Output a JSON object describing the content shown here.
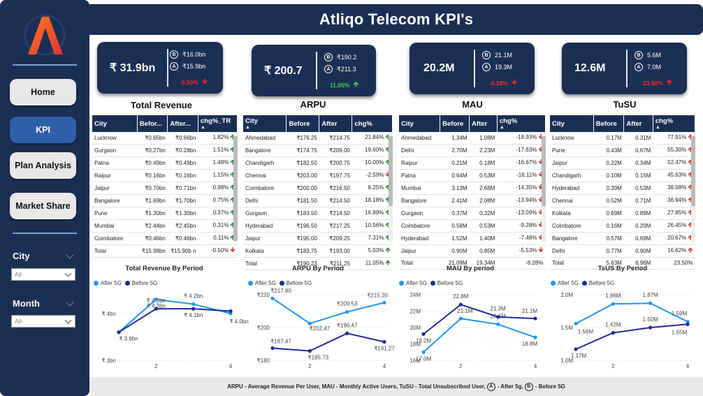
{
  "header": {
    "title": "Atliqo Telecom KPI's"
  },
  "sidebar": {
    "nav": [
      {
        "label": "Home",
        "active": false
      },
      {
        "label": "KPI",
        "active": true
      },
      {
        "label": "Plan Analysis",
        "active": false
      },
      {
        "label": "Market Share",
        "active": false
      }
    ],
    "filters": {
      "city": {
        "label": "City",
        "value": "All"
      },
      "month": {
        "label": "Month",
        "value": "All"
      }
    }
  },
  "kpis": [
    {
      "title": "Total Revenue",
      "main": "₹ 31.9bn",
      "before": "₹16.0bn",
      "after": "₹15.9bn",
      "change": "-0.50%",
      "direction": "down"
    },
    {
      "title": "ARPU",
      "main": "₹ 200.7",
      "before": "₹190.2",
      "after": "₹211.3",
      "change": "11.05%",
      "direction": "up"
    },
    {
      "title": "MAU",
      "main": "20.2M",
      "before": "21.1M",
      "after": "19.3M",
      "change": "-8.28%",
      "direction": "down"
    },
    {
      "title": "TuSU",
      "main": "12.6M",
      "before": "5.6M",
      "after": "7.0M",
      "change": "23.50%",
      "direction": "up"
    }
  ],
  "kpi_letters": {
    "before": "B",
    "after": "A"
  },
  "tables": [
    {
      "headers": [
        "City",
        "Befor...",
        "After...",
        "chg%_TR"
      ],
      "rows": [
        [
          "Lucknow",
          "₹0.65bn",
          "₹0.66bn",
          "1.82%",
          "up"
        ],
        [
          "Gurgaon",
          "₹0.27bn",
          "₹0.28bn",
          "1.51%",
          "up"
        ],
        [
          "Patna",
          "₹0.49bn",
          "₹0.49bn",
          "1.48%",
          "up"
        ],
        [
          "Raipur",
          "₹0.16bn",
          "₹0.16bn",
          "1.15%",
          "up"
        ],
        [
          "Jaipur",
          "₹0.70bn",
          "₹0.71bn",
          "0.98%",
          "up"
        ],
        [
          "Bangalore",
          "₹1.69bn",
          "₹1.70bn",
          "0.75%",
          "up"
        ],
        [
          "Pune",
          "₹1.30bn",
          "₹1.30bn",
          "0.37%",
          "up"
        ],
        [
          "Mumbai",
          "₹2.44bn",
          "₹2.45bn",
          "0.31%",
          "up"
        ],
        [
          "Coimbatore",
          "₹0.46bn",
          "₹0.46bn",
          "0.11%",
          "up"
        ]
      ],
      "total": [
        "Total",
        "₹15.98bn",
        "₹15.90b n",
        "-0.50%",
        "down"
      ]
    },
    {
      "headers": [
        "City",
        "Before",
        "After",
        "chg%"
      ],
      "rows": [
        [
          "Ahmedabad",
          "₹176.25",
          "₹214.75",
          "21.84%",
          "up"
        ],
        [
          "Bangalore",
          "₹174.75",
          "₹209.00",
          "19.60%",
          "up"
        ],
        [
          "Chandigarh",
          "₹182.50",
          "₹200.75",
          "10.00%",
          "up"
        ],
        [
          "Chennai",
          "₹203.00",
          "₹197.75",
          "-2.59%",
          "down"
        ],
        [
          "Coimbatore",
          "₹200.00",
          "₹216.50",
          "8.25%",
          "up"
        ],
        [
          "Delhi",
          "₹181.50",
          "₹214.50",
          "18.18%",
          "up"
        ],
        [
          "Gurgaon",
          "₹183.50",
          "₹214.50",
          "16.89%",
          "up"
        ],
        [
          "Hyderabad",
          "₹196.50",
          "₹217.25",
          "10.56%",
          "up"
        ],
        [
          "Jaipur",
          "₹195.00",
          "₹209.25",
          "7.31%",
          "up"
        ],
        [
          "Kolkata",
          "₹183.75",
          "₹193.00",
          "5.03%",
          "up"
        ]
      ],
      "total": [
        "Total",
        "₹190.23",
        "₹211.25",
        "11.05%",
        "up"
      ]
    },
    {
      "headers": [
        "City",
        "Before",
        "After",
        "chg%"
      ],
      "rows": [
        [
          "Ahmedabad",
          "1.34M",
          "1.08M",
          "-18.93%",
          "down"
        ],
        [
          "Delhi",
          "2.70M",
          "2.23M",
          "-17.63%",
          "down"
        ],
        [
          "Raipur",
          "0.21M",
          "0.18M",
          "-16.67%",
          "down"
        ],
        [
          "Patna",
          "0.64M",
          "0.53M",
          "-16.11%",
          "down"
        ],
        [
          "Mumbai",
          "3.13M",
          "2.68M",
          "-14.35%",
          "down"
        ],
        [
          "Bangalore",
          "2.41M",
          "2.08M",
          "-13.94%",
          "down"
        ],
        [
          "Gurgaon",
          "0.37M",
          "0.32M",
          "-13.09%",
          "down"
        ],
        [
          "Coimbatore",
          "0.58M",
          "0.53M",
          "-9.28%",
          "down"
        ],
        [
          "Hyderabad",
          "1.52M",
          "1.40M",
          "-7.48%",
          "down"
        ],
        [
          "Jaipur",
          "0.90M",
          "0.85M",
          "-5.53%",
          "down"
        ]
      ],
      "total": [
        "Total",
        "21.09M",
        "19.34M",
        "-8.28%",
        ""
      ]
    },
    {
      "headers": [
        "City",
        "Before",
        "After",
        "chg%"
      ],
      "rows": [
        [
          "Lucknow",
          "0.17M",
          "0.31M",
          "77.91%",
          "up-red"
        ],
        [
          "Pune",
          "0.43M",
          "0.67M",
          "55.30%",
          "up-red"
        ],
        [
          "Jaipur",
          "0.22M",
          "0.34M",
          "52.47%",
          "up-red"
        ],
        [
          "Chandigarh",
          "0.10M",
          "0.15M",
          "45.63%",
          "up-red"
        ],
        [
          "Hyderabad",
          "0.39M",
          "0.53M",
          "38.08%",
          "up-red"
        ],
        [
          "Chennai",
          "0.52M",
          "0.71M",
          "36.94%",
          "up-red"
        ],
        [
          "Kolkata",
          "0.69M",
          "0.89M",
          "27.85%",
          "up-red"
        ],
        [
          "Coimbatore",
          "0.16M",
          "0.20M",
          "26.45%",
          "up-red"
        ],
        [
          "Bangalore",
          "0.57M",
          "0.69M",
          "20.67%",
          "up-red"
        ],
        [
          "Delhi",
          "0.77M",
          "0.90M",
          "16.62%",
          "up-red"
        ]
      ],
      "total": [
        "Total",
        "5.63M",
        "6.96M",
        "23.50%",
        ""
      ]
    }
  ],
  "legend": {
    "after": "After 5G",
    "before": "Before 5G"
  },
  "colors": {
    "after": "#2196f3",
    "before": "#1f2a9a",
    "navy": "#1b2f55"
  },
  "chart_data": [
    {
      "type": "line",
      "title": "Total Revenue By Period",
      "x": [
        1,
        2,
        3,
        4
      ],
      "series": [
        {
          "name": "After 5G",
          "values": [
            3.6,
            4.3,
            4.2,
            4.0
          ],
          "labels": [
            "",
            "₹ 4.3bn",
            "₹ 4.2bn",
            "₹ 4.0bn"
          ]
        },
        {
          "name": "Before 5G",
          "values": [
            3.6,
            4.1,
            4.1,
            4.05
          ],
          "labels": [
            "₹ 3.6bn",
            "₹ 4.1bn",
            "₹ 4.1bn",
            ""
          ]
        }
      ],
      "ylim": [
        3.0,
        4.4
      ],
      "yticks": [
        "₹ 3bn",
        "₹ 4bn"
      ],
      "xticks": [
        "2",
        "4"
      ]
    },
    {
      "type": "line",
      "title": "ARPU By Period",
      "x": [
        1,
        2,
        3,
        4
      ],
      "series": [
        {
          "name": "After 5G",
          "values": [
            217.8,
            202.47,
            209.53,
            215.2
          ],
          "labels": [
            "₹217.80",
            "₹202.47",
            "₹209.53",
            "₹215.20"
          ]
        },
        {
          "name": "Before 5G",
          "values": [
            187.47,
            185.73,
            196.47,
            191.27
          ],
          "labels": [
            "₹187.47",
            "₹185.73",
            "₹196.47",
            "₹191.27"
          ]
        }
      ],
      "ylim": [
        180,
        220
      ],
      "yticks": [
        "₹180",
        "₹200",
        "₹220"
      ],
      "xticks": [
        "2",
        "4"
      ]
    },
    {
      "type": "line",
      "title": "MAU By period",
      "x": [
        1,
        2,
        3,
        4
      ],
      "series": [
        {
          "name": "After 5G",
          "values": [
            17.0,
            21.1,
            20.4,
            18.8
          ],
          "labels": [
            "17.0M",
            "21.1M",
            "20.4M",
            "18.8M"
          ]
        },
        {
          "name": "Before 5G",
          "values": [
            19.2,
            22.8,
            21.3,
            21.1
          ],
          "labels": [
            "19.2M",
            "22.8M",
            "21.3M",
            "21.1M"
          ]
        }
      ],
      "ylim": [
        16,
        24
      ],
      "yticks": [
        "16M",
        "18M",
        "20M",
        "22M",
        "24M"
      ],
      "xticks": [
        "2",
        "4"
      ]
    },
    {
      "type": "line",
      "title": "TsUS By Period",
      "x": [
        1,
        2,
        3,
        4
      ],
      "series": [
        {
          "name": "After 5G",
          "values": [
            1.56,
            1.86,
            1.87,
            1.59
          ],
          "labels": [
            "1.56M",
            "1.86M",
            "1.87M",
            "1.59M"
          ]
        },
        {
          "name": "Before 5G",
          "values": [
            1.17,
            1.42,
            1.5,
            1.55
          ],
          "labels": [
            "1.17M",
            "1.42M",
            "1.50M",
            "1.55M"
          ]
        }
      ],
      "ylim": [
        1.0,
        2.0
      ],
      "yticks": [
        "1.0M",
        "1.5M",
        "2.0M"
      ],
      "xticks": [
        "2",
        "4"
      ]
    }
  ],
  "footer": {
    "text_before": "ARPU - Average Revenue Per User, MAU - Monthly Active Users, TuSU - Total Unsubscribed User,",
    "after_letter": "A",
    "after_text": "- After 5g,",
    "before_letter": "B",
    "before_text": "- Before 5G"
  }
}
